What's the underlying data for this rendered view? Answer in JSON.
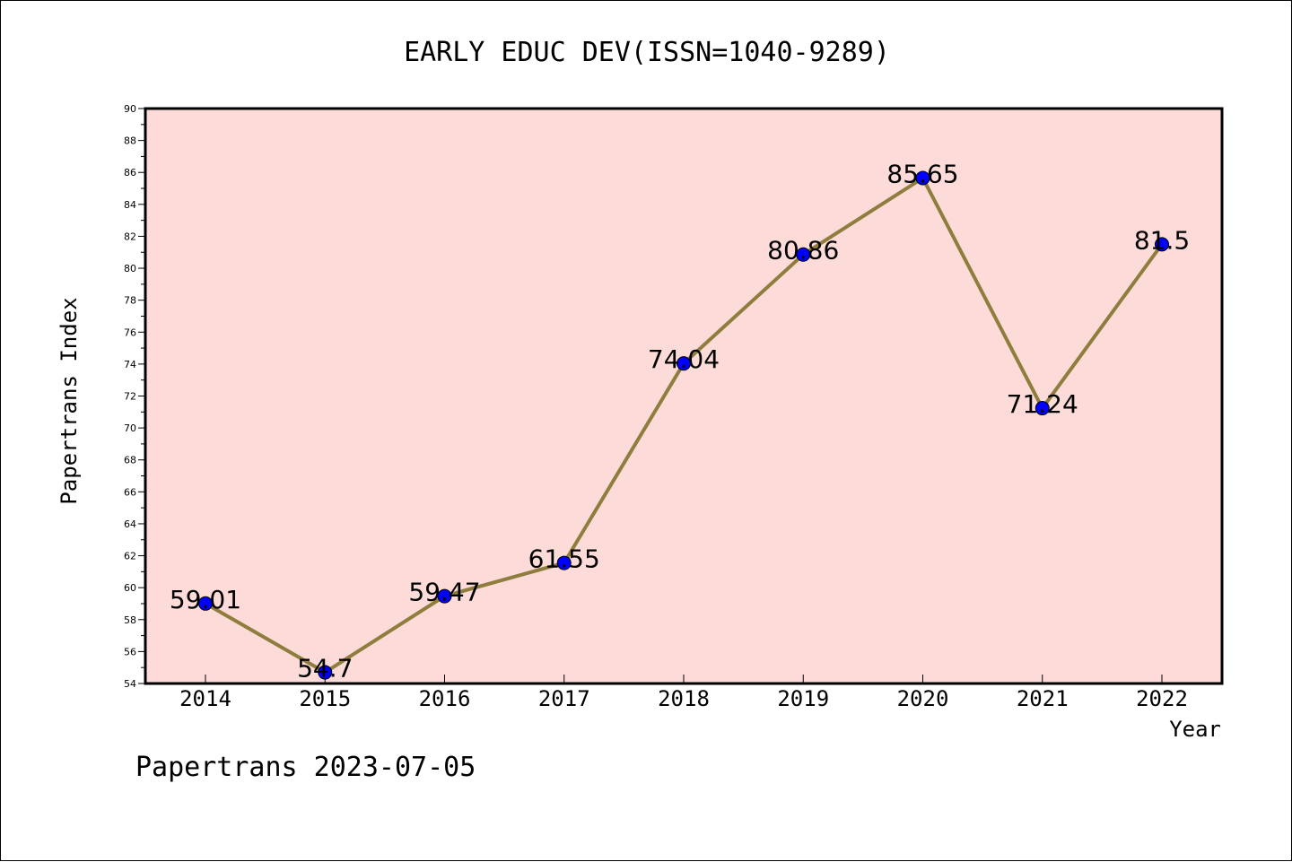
{
  "chart_data": {
    "type": "line",
    "title": "EARLY EDUC DEV(ISSN=1040-9289)",
    "xlabel": "Year",
    "ylabel": "Papertrans Index",
    "footer": "Papertrans 2023-07-05",
    "categories": [
      "2014",
      "2015",
      "2016",
      "2017",
      "2018",
      "2019",
      "2020",
      "2021",
      "2022"
    ],
    "values": [
      59.01,
      54.7,
      59.47,
      61.55,
      74.04,
      80.86,
      85.65,
      71.24,
      81.5
    ],
    "data_labels": [
      "59.01",
      "54.7",
      "59.47",
      "61.55",
      "74.04",
      "80.86",
      "85.65",
      "71.24",
      "81.5"
    ],
    "ylim": [
      54,
      90
    ],
    "yticks": [
      "54",
      "56",
      "58",
      "60",
      "62",
      "64",
      "66",
      "68",
      "70",
      "72",
      "74",
      "76",
      "78",
      "80",
      "82",
      "84",
      "86",
      "88",
      "90"
    ],
    "grid": false,
    "colors": {
      "plot_background": "#fddbd9",
      "line": "#8e7d3c",
      "marker": "#0000ff"
    }
  }
}
